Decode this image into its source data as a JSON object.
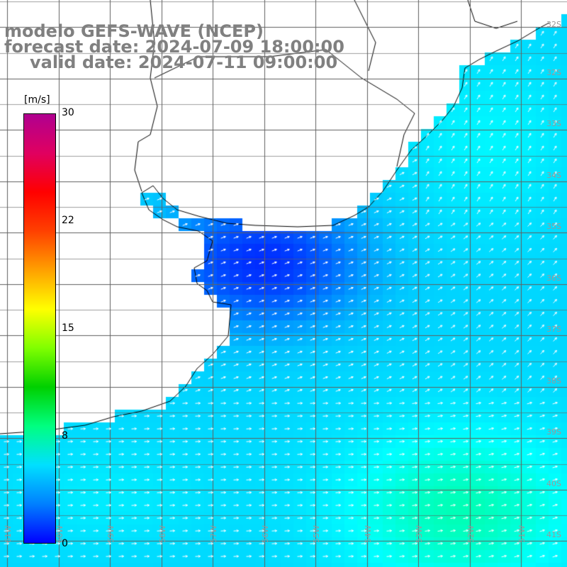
{
  "title": {
    "line1": "modelo GEFS-WAVE (NCEP)",
    "line2": "forecast date: 2024-07-09 18:00:00",
    "line3": "valid date: 2024-07-11 09:00:00"
  },
  "colorbar": {
    "unit": "[m/s]",
    "ticks": [
      "30",
      "22",
      "15",
      "8",
      "0"
    ],
    "min": 0,
    "max": 30,
    "colors": [
      "#0000ff",
      "#0080ff",
      "#00e0ff",
      "#00ff80",
      "#00d000",
      "#80ff00",
      "#ffff00",
      "#ffa000",
      "#ff4000",
      "#ff0000",
      "#e00060",
      "#b00090"
    ]
  },
  "map": {
    "land_color": "#ffffff",
    "coast_color": "#000000",
    "grid_color": "#606060",
    "arrow_color": "#ffffff",
    "lat_labels": [
      "32S",
      "33S",
      "34S",
      "35S",
      "36S",
      "37S",
      "38S",
      "39S",
      "40S",
      "41S"
    ],
    "lon_labels": [
      "61W",
      "60W",
      "59W",
      "58W",
      "57W",
      "56W",
      "55W",
      "54W",
      "53W",
      "52W",
      "51W"
    ]
  }
}
